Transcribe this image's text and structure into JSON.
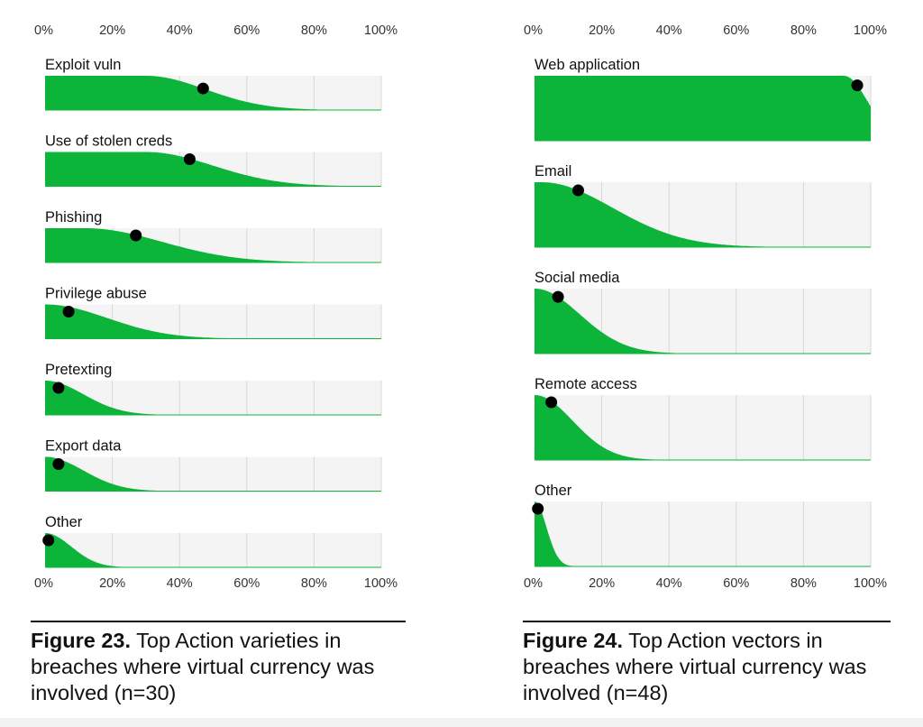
{
  "chart_data": [
    {
      "type": "area",
      "figure": "Figure 23.",
      "caption": "Top Action varieties in breaches where virtual currency was involved (n=30)",
      "x_ticks": [
        "0%",
        "20%",
        "40%",
        "60%",
        "80%",
        "100%"
      ],
      "xlim": [
        0,
        100
      ],
      "grid": true,
      "fill_color": "#0db43a",
      "point_color": "#000000",
      "panel_bg": "#f4f4f4",
      "series": [
        {
          "name": "Exploit vuln",
          "value": 47,
          "plateau": 30,
          "spread": 25
        },
        {
          "name": "Use of stolen creds",
          "value": 43,
          "plateau": 30,
          "spread": 28
        },
        {
          "name": "Phishing",
          "value": 27,
          "plateau": 12,
          "spread": 32
        },
        {
          "name": "Privilege abuse",
          "value": 7,
          "plateau": 0,
          "spread": 26
        },
        {
          "name": "Pretexting",
          "value": 4,
          "plateau": 0,
          "spread": 16
        },
        {
          "name": "Export data",
          "value": 4,
          "plateau": 0,
          "spread": 16
        },
        {
          "name": "Other",
          "value": 1,
          "plateau": 0,
          "spread": 11
        }
      ]
    },
    {
      "type": "area",
      "figure": "Figure 24.",
      "caption": "Top Action vectors in breaches where virtual currency was involved (n=48)",
      "x_ticks": [
        "0%",
        "20%",
        "40%",
        "60%",
        "80%",
        "100%"
      ],
      "xlim": [
        0,
        100
      ],
      "grid": true,
      "fill_color": "#0db43a",
      "point_color": "#000000",
      "panel_bg": "#f4f4f4",
      "series": [
        {
          "name": "Web application",
          "value": 96,
          "plateau": 92,
          "spread": 10
        },
        {
          "name": "Email",
          "value": 13,
          "plateau": 2,
          "spread": 30
        },
        {
          "name": "Social media",
          "value": 7,
          "plateau": 0,
          "spread": 19
        },
        {
          "name": "Remote access",
          "value": 5,
          "plateau": 0,
          "spread": 16
        },
        {
          "name": "Other",
          "value": 1,
          "plateau": 0,
          "spread": 5
        }
      ]
    }
  ]
}
